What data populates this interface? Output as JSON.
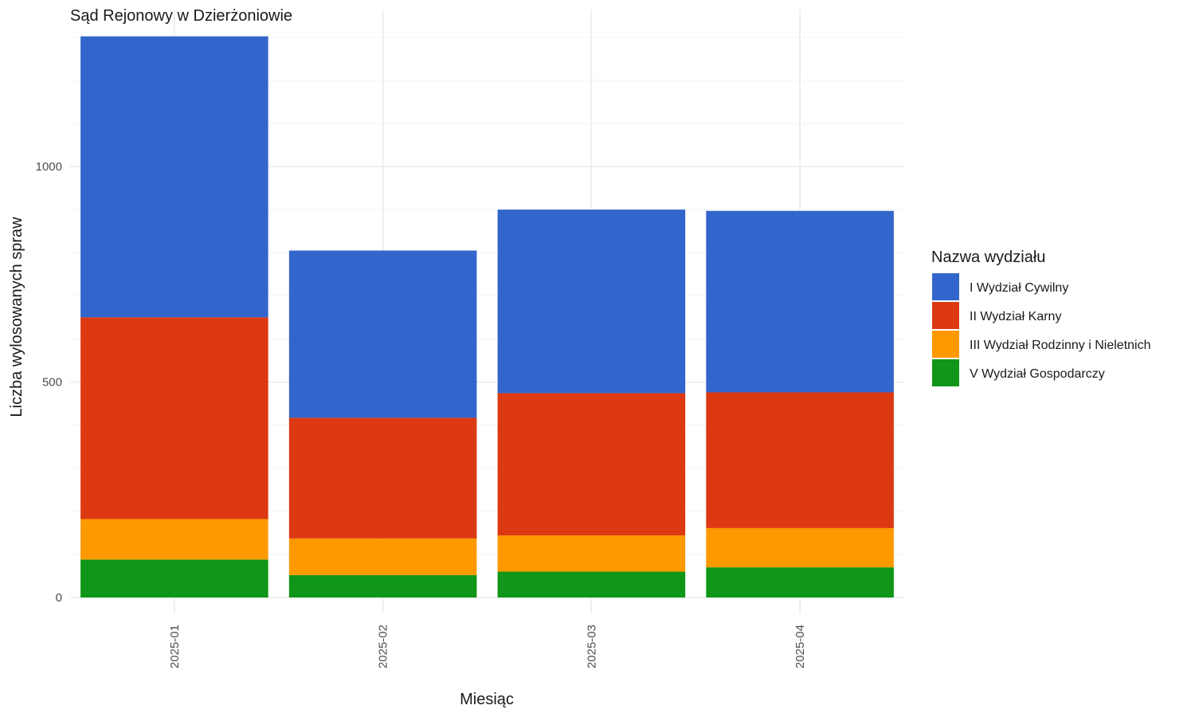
{
  "chart_data": {
    "type": "bar",
    "stacked": true,
    "title": "Sąd Rejonowy w Dzierżoniowie",
    "xlabel": "Miesiąc",
    "ylabel": "Liczba wylosowanych spraw",
    "categories": [
      "2025-01",
      "2025-02",
      "2025-03",
      "2025-04"
    ],
    "ylim": [
      0,
      1370
    ],
    "yticks": [
      0,
      500,
      1000
    ],
    "grid": true,
    "legend": {
      "title": "Nazwa wydziału",
      "position": "right"
    },
    "series": [
      {
        "name": "V Wydział Gospodarczy",
        "color": "#109618",
        "values": [
          88,
          52,
          60,
          70
        ]
      },
      {
        "name": "III Wydział Rodzinny i Nieletnich",
        "color": "#FF9900",
        "values": [
          94,
          85,
          84,
          91
        ]
      },
      {
        "name": "II Wydział Karny",
        "color": "#DC3912",
        "values": [
          468,
          280,
          330,
          315
        ]
      },
      {
        "name": "I Wydział Cywilny",
        "color": "#3366CC",
        "values": [
          652,
          388,
          426,
          421
        ]
      }
    ],
    "legend_order": [
      "I Wydział Cywilny",
      "II Wydział Karny",
      "III Wydział Rodzinny i Nieletnich",
      "V Wydział Gospodarczy"
    ]
  }
}
